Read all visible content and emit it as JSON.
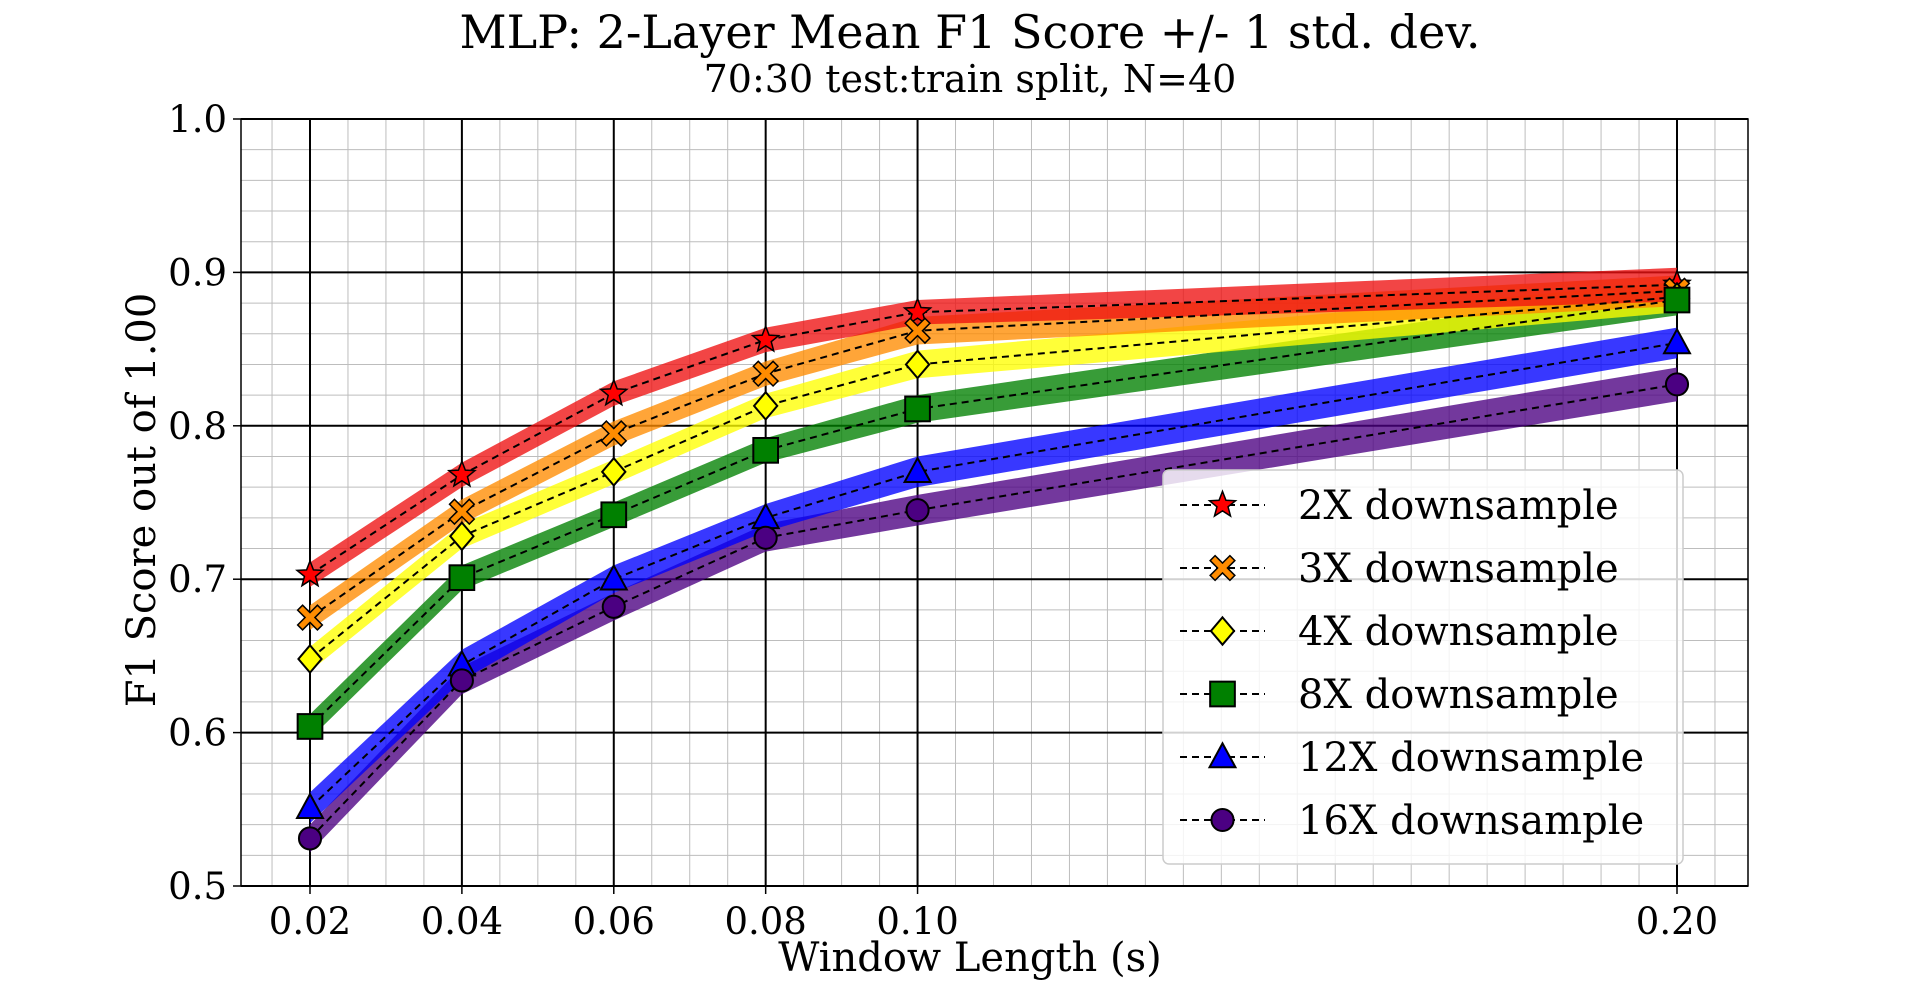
{
  "chart_data": {
    "type": "line",
    "title": "MLP: 2-Layer Mean F1 Score +/- 1 std. dev.",
    "subtitle": "70:30 test:train split, N=40",
    "xlabel": "Window Length (s)",
    "ylabel": "F1 Score out of 1.00",
    "x": [
      0.02,
      0.04,
      0.06,
      0.08,
      0.1,
      0.2
    ],
    "x_tick_labels": [
      "0.02",
      "0.04",
      "0.06",
      "0.08",
      "0.10",
      "0.20"
    ],
    "y_tick_values": [
      0.5,
      0.6,
      0.7,
      0.8,
      0.9,
      1.0
    ],
    "y_tick_labels": [
      "0.5",
      "0.6",
      "0.7",
      "0.8",
      "0.9",
      "1.0"
    ],
    "ylim": [
      0.5,
      1.0
    ],
    "grid": "major and minor",
    "legend_position": "lower-right",
    "series": [
      {
        "name": "2X downsample",
        "marker": "star",
        "color": "#ff0000",
        "band_color": "#ee1111",
        "values": [
          0.703,
          0.768,
          0.821,
          0.856,
          0.874,
          0.892
        ],
        "std": [
          0.008,
          0.008,
          0.008,
          0.008,
          0.008,
          0.011
        ]
      },
      {
        "name": "3X downsample",
        "marker": "x",
        "color": "#ff8c00",
        "band_color": "#ff8c00",
        "values": [
          0.675,
          0.744,
          0.795,
          0.834,
          0.862,
          0.888
        ],
        "std": [
          0.008,
          0.008,
          0.008,
          0.008,
          0.009,
          0.01
        ]
      },
      {
        "name": "4X downsample",
        "marker": "diamond",
        "color": "#ffff00",
        "band_color": "#ffff00",
        "values": [
          0.648,
          0.728,
          0.77,
          0.813,
          0.84,
          0.884
        ],
        "std": [
          0.008,
          0.008,
          0.008,
          0.008,
          0.009,
          0.01
        ]
      },
      {
        "name": "8X downsample",
        "marker": "square",
        "color": "#008000",
        "band_color": "#008000",
        "values": [
          0.604,
          0.701,
          0.742,
          0.784,
          0.811,
          0.882
        ],
        "std": [
          0.008,
          0.008,
          0.008,
          0.008,
          0.009,
          0.01
        ]
      },
      {
        "name": "12X downsample",
        "marker": "triangle",
        "color": "#0000ff",
        "band_color": "#0000ff",
        "values": [
          0.551,
          0.644,
          0.7,
          0.74,
          0.77,
          0.854
        ],
        "std": [
          0.01,
          0.01,
          0.009,
          0.009,
          0.01,
          0.01
        ]
      },
      {
        "name": "16X downsample",
        "marker": "circle",
        "color": "#4b0082",
        "band_color": "#4b0082",
        "values": [
          0.531,
          0.634,
          0.682,
          0.727,
          0.745,
          0.827
        ],
        "std": [
          0.009,
          0.009,
          0.009,
          0.009,
          0.01,
          0.011
        ]
      }
    ]
  }
}
